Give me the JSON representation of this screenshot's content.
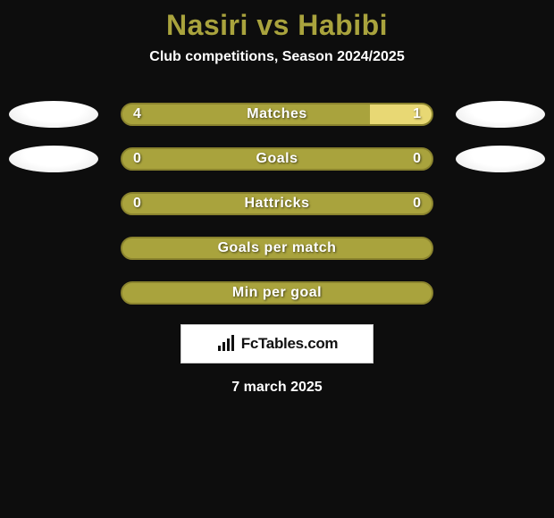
{
  "title": "Nasiri vs Habibi",
  "subtitle": "Club competitions, Season 2024/2025",
  "date": "7 march 2025",
  "footer_brand": "FcTables.com",
  "colors": {
    "accent": "#a9a33d",
    "accent_dark": "#8a832e",
    "background": "#0d0d0d",
    "text": "#ffffff",
    "ellipse_top": "#ffffff",
    "ellipse_bottom": "#e6e6e6"
  },
  "left_ellipses": [
    {
      "visible": true
    },
    {
      "visible": true
    },
    {
      "visible": false
    },
    {
      "visible": false
    },
    {
      "visible": false
    }
  ],
  "right_ellipses": [
    {
      "visible": true
    },
    {
      "visible": true
    },
    {
      "visible": false
    },
    {
      "visible": false
    },
    {
      "visible": false
    }
  ],
  "stats": [
    {
      "label": "Matches",
      "left_value": "4",
      "right_value": "1",
      "left_pct": 80,
      "right_pct": 20,
      "right_color": "#e8d874",
      "has_values": true
    },
    {
      "label": "Goals",
      "left_value": "0",
      "right_value": "0",
      "left_pct": 100,
      "right_pct": 0,
      "right_color": "#a9a33d",
      "has_values": true
    },
    {
      "label": "Hattricks",
      "left_value": "0",
      "right_value": "0",
      "left_pct": 100,
      "right_pct": 0,
      "right_color": "#a9a33d",
      "has_values": true
    },
    {
      "label": "Goals per match",
      "left_value": "",
      "right_value": "",
      "left_pct": 100,
      "right_pct": 0,
      "right_color": "#a9a33d",
      "has_values": false
    },
    {
      "label": "Min per goal",
      "left_value": "",
      "right_value": "",
      "left_pct": 100,
      "right_pct": 0,
      "right_color": "#a9a33d",
      "has_values": false
    }
  ]
}
